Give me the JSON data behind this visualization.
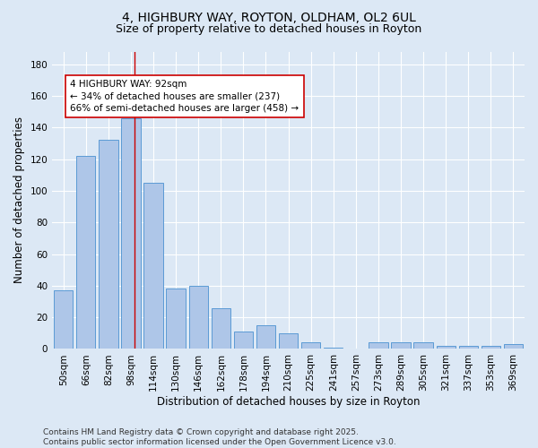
{
  "title_line1": "4, HIGHBURY WAY, ROYTON, OLDHAM, OL2 6UL",
  "title_line2": "Size of property relative to detached houses in Royton",
  "xlabel": "Distribution of detached houses by size in Royton",
  "ylabel": "Number of detached properties",
  "bar_labels": [
    "50sqm",
    "66sqm",
    "82sqm",
    "98sqm",
    "114sqm",
    "130sqm",
    "146sqm",
    "162sqm",
    "178sqm",
    "194sqm",
    "210sqm",
    "225sqm",
    "241sqm",
    "257sqm",
    "273sqm",
    "289sqm",
    "305sqm",
    "321sqm",
    "337sqm",
    "353sqm",
    "369sqm"
  ],
  "bar_values": [
    37,
    122,
    132,
    146,
    105,
    38,
    40,
    26,
    11,
    15,
    10,
    4,
    1,
    0,
    4,
    4,
    4,
    2,
    2,
    2,
    3
  ],
  "bar_color": "#aec6e8",
  "bar_edge_color": "#5b9bd5",
  "vline_x": 3.15,
  "vline_color": "#cc0000",
  "annotation_text": "4 HIGHBURY WAY: 92sqm\n← 34% of detached houses are smaller (237)\n66% of semi-detached houses are larger (458) →",
  "annotation_box_color": "#ffffff",
  "annotation_box_edge_color": "#cc0000",
  "ylim": [
    0,
    188
  ],
  "yticks": [
    0,
    20,
    40,
    60,
    80,
    100,
    120,
    140,
    160,
    180
  ],
  "background_color": "#dce8f5",
  "footer_text": "Contains HM Land Registry data © Crown copyright and database right 2025.\nContains public sector information licensed under the Open Government Licence v3.0.",
  "title_fontsize": 10,
  "subtitle_fontsize": 9,
  "axis_label_fontsize": 8.5,
  "tick_fontsize": 7.5,
  "annotation_fontsize": 7.5,
  "footer_fontsize": 6.5
}
